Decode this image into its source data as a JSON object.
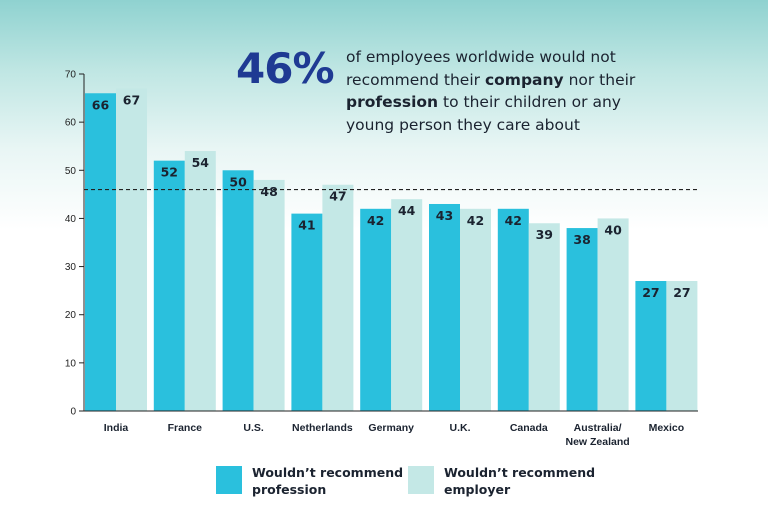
{
  "callout": {
    "percent": "46%",
    "text_1": "of employees worldwide would not recommend their ",
    "bold_1": "company",
    "text_2": " nor their ",
    "bold_2": "profession",
    "text_3": " to their children or any young person they care about"
  },
  "colors": {
    "profession": "#2ac0dd",
    "employer": "#c4e8e6",
    "axis": "#222222",
    "reference_line": "#222222",
    "callout_accent": "#1f3a93"
  },
  "chart_data": {
    "type": "bar",
    "categories": [
      "India",
      "France",
      "U.S.",
      "Netherlands",
      "Germany",
      "U.K.",
      "Canada",
      "Australia/\nNew Zealand",
      "Mexico"
    ],
    "series": [
      {
        "name": "Wouldn’t recommend profession",
        "values": [
          66,
          52,
          50,
          41,
          42,
          43,
          42,
          38,
          27
        ]
      },
      {
        "name": "Wouldn’t recommend employer",
        "values": [
          67,
          54,
          48,
          47,
          44,
          42,
          39,
          40,
          27
        ]
      }
    ],
    "ylim": [
      0,
      70
    ],
    "yticks": [
      0,
      10,
      20,
      30,
      40,
      50,
      60,
      70
    ],
    "reference_line": 46,
    "grid": false,
    "legend_position": "bottom"
  }
}
